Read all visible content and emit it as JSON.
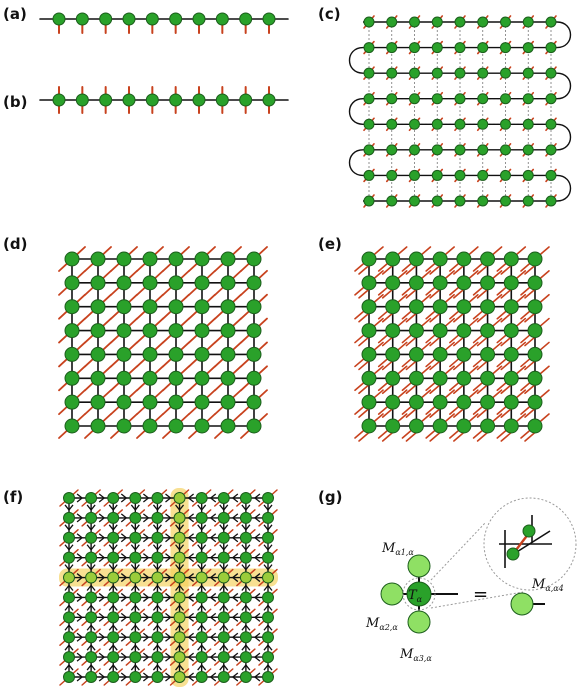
{
  "panels": {
    "a": {
      "label": "(a)",
      "sites": 10
    },
    "b": {
      "label": "(b)",
      "sites": 10
    },
    "c": {
      "label": "(c)",
      "rows": 8,
      "cols": 9
    },
    "d": {
      "label": "(d)",
      "rows": 8,
      "cols": 8
    },
    "e": {
      "label": "(e)",
      "rows": 8,
      "cols": 8
    },
    "f": {
      "label": "(f)",
      "rows": 10,
      "cols": 10
    },
    "g": {
      "label": "(g)",
      "top_label": "M",
      "top_sub": "α1,α",
      "left_label": "M",
      "left_sub": "α2,α",
      "bottom_label": "M",
      "bottom_sub": "α3,α",
      "center_label": "T",
      "center_sub": "α",
      "equals": "=",
      "right_label": "M",
      "right_sub": "α,α4"
    }
  },
  "colors": {
    "node_fill": "#2aa12a",
    "node_light": "#8fe064",
    "node_stroke": "#1c5e1c",
    "leg": "#c8421e",
    "bond": "#111111",
    "highlight": "#f4cf57"
  }
}
